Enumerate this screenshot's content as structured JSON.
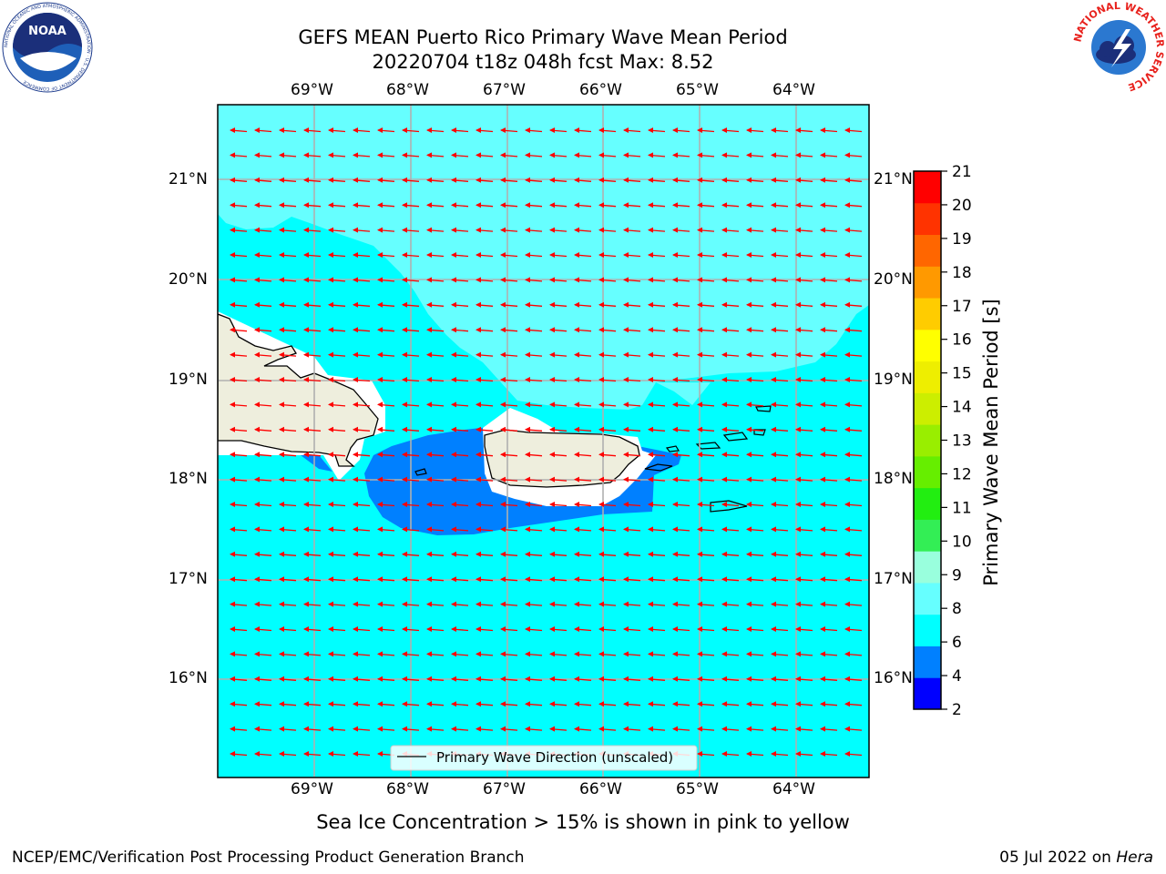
{
  "header": {
    "title_line1": "GEFS MEAN Puerto Rico Primary Wave Mean Period",
    "title_line2": "20220704 t18z 048h fcst   Max: 8.52"
  },
  "logos": {
    "left": {
      "text": "NOAA",
      "ring_text": "NATIONAL OCEANIC AND ATMOSPHERIC ADMINISTRATION · U.S. DEPARTMENT OF COMMERCE"
    },
    "right": {
      "ring_text": "NATIONAL WEATHER SERVICE"
    }
  },
  "map": {
    "lon_labels": [
      "69°W",
      "68°W",
      "67°W",
      "66°W",
      "65°W",
      "64°W"
    ],
    "lat_labels": [
      "21°N",
      "20°N",
      "19°N",
      "18°N",
      "17°N",
      "16°N"
    ],
    "legend_label": "Primary Wave Direction (unscaled)",
    "colors": {
      "light_cyan": "#66ffff",
      "cyan": "#00ffff",
      "blue": "#0080ff",
      "land": "#eeeedd",
      "arrow": "#ff0000",
      "grid": "#b0b0b0"
    }
  },
  "colorbar": {
    "title": "Primary Wave Mean Period [s]",
    "ticks": [
      "2",
      "4",
      "6",
      "8",
      "9",
      "10",
      "11",
      "12",
      "13",
      "14",
      "15",
      "16",
      "17",
      "18",
      "19",
      "20",
      "21"
    ],
    "colors": [
      "#0000ff",
      "#0080ff",
      "#00ffff",
      "#66ffff",
      "#99ffdd",
      "#33ee55",
      "#22ee11",
      "#66ee00",
      "#99ee00",
      "#ccee00",
      "#eeee00",
      "#ffff00",
      "#ffcc00",
      "#ff9900",
      "#ff6600",
      "#ff3300",
      "#ff0000"
    ]
  },
  "subtitle": "Sea Ice Concentration > 15% is shown in pink to yellow",
  "footer": {
    "left": "NCEP/EMC/Verification Post Processing Product Generation Branch",
    "right_date": "05 Jul 2022 on ",
    "right_machine": "Hera"
  }
}
